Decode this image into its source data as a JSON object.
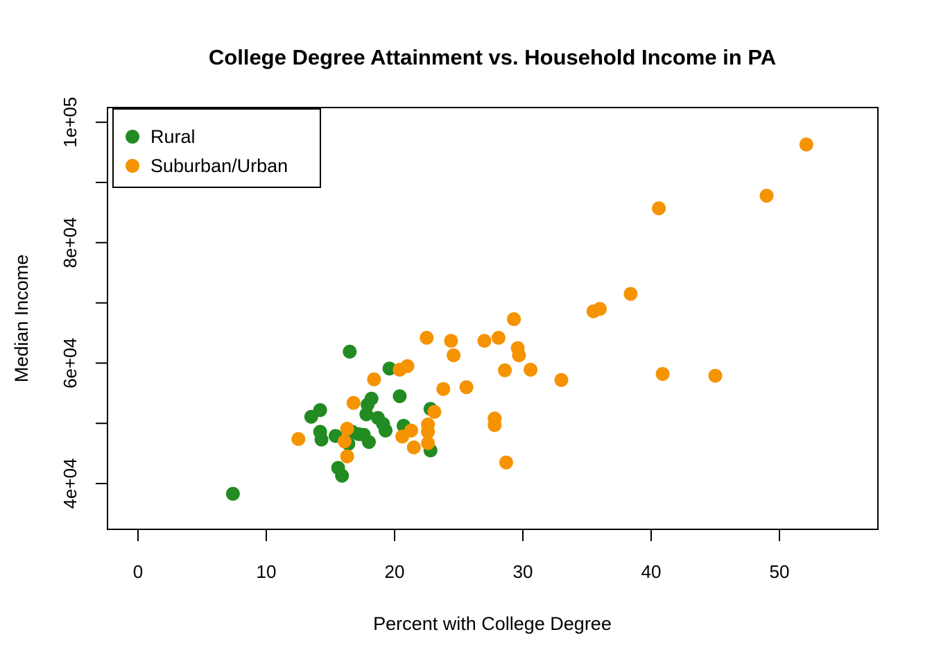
{
  "chart_data": {
    "type": "scatter",
    "title": "College Degree Attainment vs. Household Income in PA",
    "xlabel": "Percent with College Degree",
    "ylabel": "Median Income",
    "xlim": [
      -2.4,
      57.7
    ],
    "ylim": [
      32400,
      102400
    ],
    "grid": false,
    "x_ticks": [
      0,
      10,
      20,
      30,
      40,
      50
    ],
    "y_ticks": [
      {
        "value": 40000,
        "label": "4e+04"
      },
      {
        "value": 50000,
        "label": ""
      },
      {
        "value": 60000,
        "label": "6e+04"
      },
      {
        "value": 70000,
        "label": ""
      },
      {
        "value": 80000,
        "label": "8e+04"
      },
      {
        "value": 90000,
        "label": ""
      },
      {
        "value": 100000,
        "label": "1e+05"
      }
    ],
    "legend": {
      "position": "top-left",
      "entries": [
        {
          "name": "Rural",
          "color": "#228B22"
        },
        {
          "name": "Suburban/Urban",
          "color": "#F59300"
        }
      ]
    },
    "series": [
      {
        "name": "Rural",
        "color": "#228B22",
        "points": [
          [
            7.4,
            38300
          ],
          [
            13.5,
            51100
          ],
          [
            14.2,
            52200
          ],
          [
            14.2,
            48600
          ],
          [
            14.3,
            47300
          ],
          [
            15.4,
            47900
          ],
          [
            15.6,
            42600
          ],
          [
            15.9,
            41300
          ],
          [
            16.4,
            46600
          ],
          [
            16.5,
            61900
          ],
          [
            16.7,
            48600
          ],
          [
            17.2,
            48200
          ],
          [
            17.6,
            48100
          ],
          [
            18.0,
            46900
          ],
          [
            18.2,
            54100
          ],
          [
            17.9,
            53100
          ],
          [
            17.8,
            51500
          ],
          [
            18.7,
            50900
          ],
          [
            19.1,
            49900
          ],
          [
            19.3,
            48800
          ],
          [
            19.6,
            59100
          ],
          [
            20.4,
            54500
          ],
          [
            20.7,
            49600
          ],
          [
            22.8,
            52400
          ],
          [
            22.8,
            45500
          ]
        ]
      },
      {
        "name": "Suburban/Urban",
        "color": "#F59300",
        "points": [
          [
            12.5,
            47400
          ],
          [
            16.3,
            49100
          ],
          [
            16.1,
            47000
          ],
          [
            16.3,
            44500
          ],
          [
            16.8,
            53400
          ],
          [
            18.4,
            57300
          ],
          [
            20.4,
            58900
          ],
          [
            21.0,
            59500
          ],
          [
            20.6,
            47800
          ],
          [
            21.3,
            48800
          ],
          [
            21.5,
            46000
          ],
          [
            22.6,
            49800
          ],
          [
            22.6,
            48600
          ],
          [
            22.6,
            46700
          ],
          [
            23.1,
            51900
          ],
          [
            22.5,
            64200
          ],
          [
            23.8,
            55700
          ],
          [
            24.4,
            63700
          ],
          [
            24.6,
            61300
          ],
          [
            25.6,
            56000
          ],
          [
            27.0,
            63700
          ],
          [
            28.1,
            64200
          ],
          [
            27.8,
            50800
          ],
          [
            27.8,
            49700
          ],
          [
            28.7,
            43500
          ],
          [
            29.3,
            67300
          ],
          [
            29.6,
            62500
          ],
          [
            29.7,
            61300
          ],
          [
            28.6,
            58800
          ],
          [
            30.6,
            58900
          ],
          [
            33.0,
            57200
          ],
          [
            35.5,
            68600
          ],
          [
            36.0,
            69000
          ],
          [
            38.4,
            71500
          ],
          [
            40.6,
            85700
          ],
          [
            40.9,
            58200
          ],
          [
            45.0,
            57900
          ],
          [
            49.0,
            87800
          ],
          [
            52.1,
            96300
          ]
        ]
      }
    ]
  }
}
